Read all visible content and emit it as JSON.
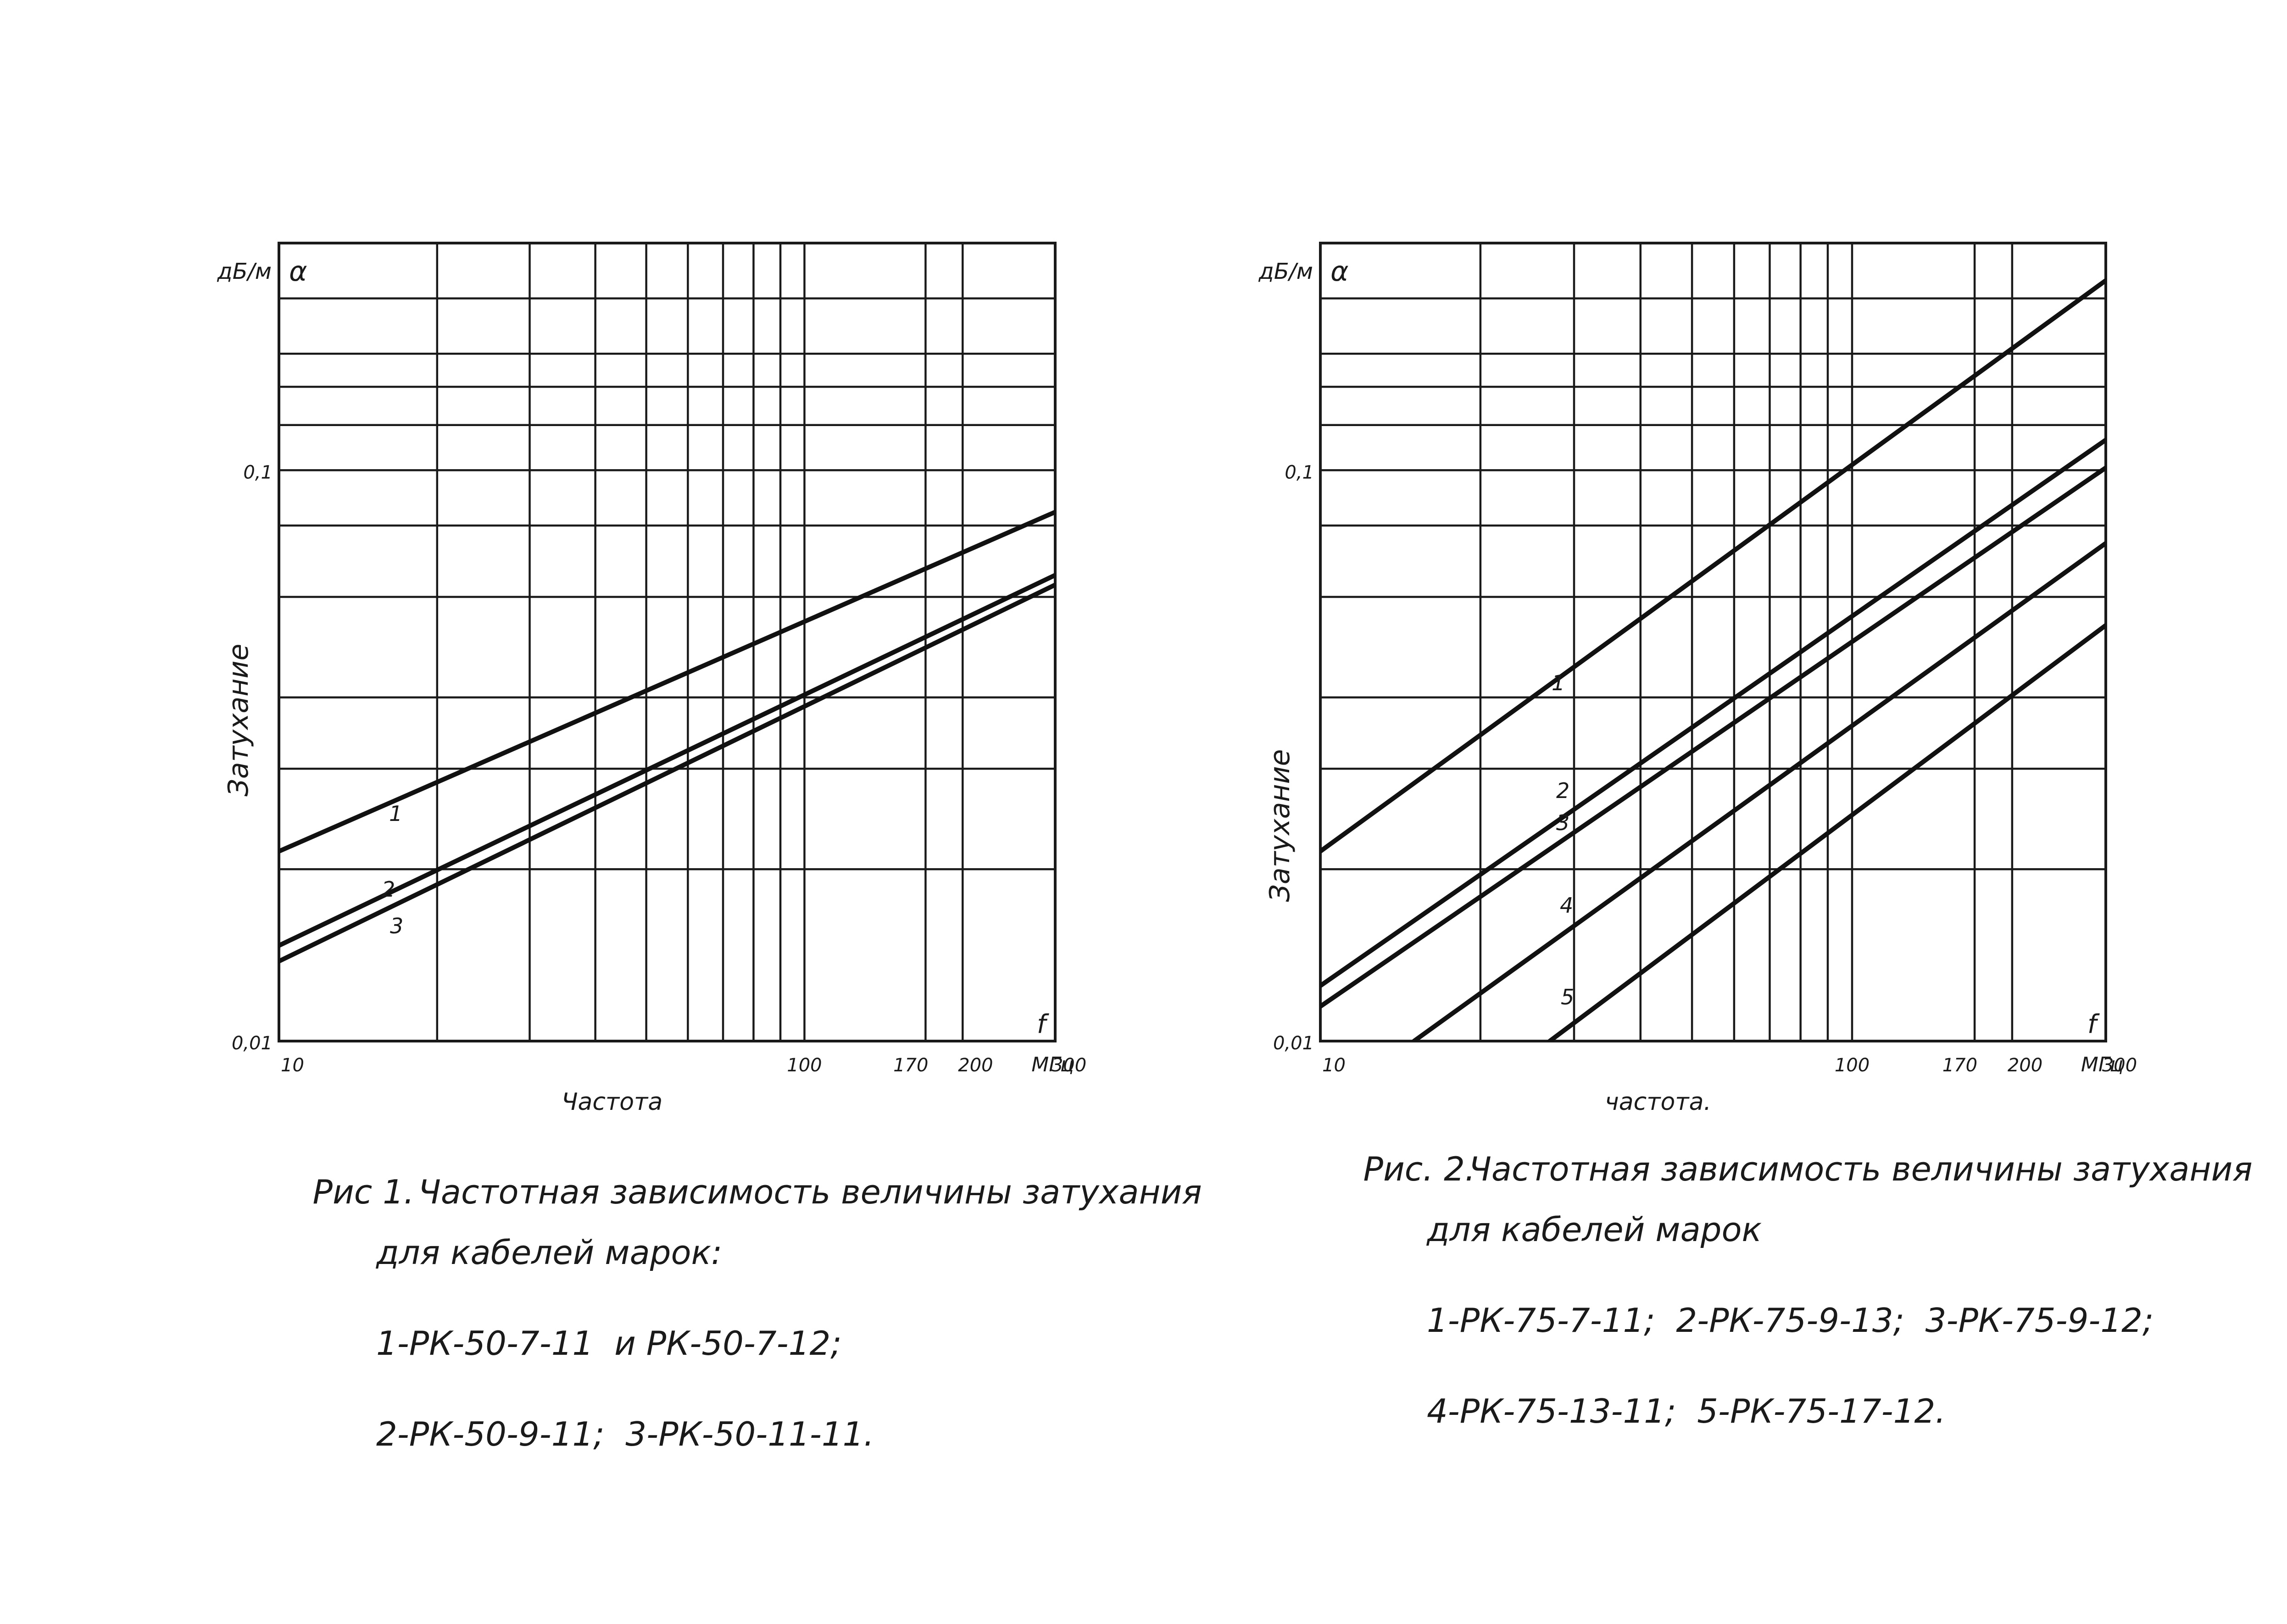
{
  "charts": [
    {
      "id": "fig1",
      "caption": {
        "number": "Рис 1.",
        "line1": "Частотная зависимость величины затухания",
        "line2": "для кабелей марок:",
        "line3": "1-РК-50-7-11  и РК-50-7-12;",
        "line4": "2-РК-50-9-11;  3-РК-50-11-11."
      },
      "y_unit": "дБ/м",
      "y_symbol": "α",
      "y_axis_label": "Затухание",
      "x_axis_label": "Частота",
      "x_symbol": "f",
      "x_unit": "МГц"
    },
    {
      "id": "fig2",
      "caption": {
        "number": "Рис. 2.",
        "line1": "Частотная зависимость величины затухания",
        "line2": "для кабелей марок",
        "line3": "1-РК-75-7-11;  2-РК-75-9-13;  3-РК-75-9-12;",
        "line4": "4-РК-75-13-11;  5-РК-75-17-12."
      },
      "y_unit": "дБ/м",
      "y_symbol": "α",
      "y_axis_label": "Затухание",
      "x_axis_label": "частота.",
      "x_symbol": "f",
      "x_unit": "МГц"
    }
  ],
  "chart_data": [
    {
      "type": "line",
      "x_scale": "log",
      "y_scale": "log",
      "xlim": [
        10,
        300
      ],
      "ylim": [
        0.01,
        0.25
      ],
      "x_ticks": [
        "10",
        "100",
        "170",
        "200",
        "300"
      ],
      "y_ticks": [
        "0,01",
        "0,1"
      ],
      "grid": true,
      "series": [
        {
          "name": "1",
          "x": [
            10,
            300
          ],
          "y": [
            0.0215,
            0.0845
          ]
        },
        {
          "name": "2",
          "x": [
            10,
            300
          ],
          "y": [
            0.0147,
            0.0655
          ]
        },
        {
          "name": "3",
          "x": [
            10,
            300
          ],
          "y": [
            0.0138,
            0.063
          ]
        }
      ]
    },
    {
      "type": "line",
      "x_scale": "log",
      "y_scale": "log",
      "xlim": [
        10,
        300
      ],
      "ylim": [
        0.01,
        0.25
      ],
      "x_ticks": [
        "10",
        "100",
        "170",
        "200",
        "300"
      ],
      "y_ticks": [
        "0,01",
        "0,1"
      ],
      "grid": true,
      "series": [
        {
          "name": "1",
          "x": [
            10,
            300
          ],
          "y": [
            0.0215,
            0.215
          ]
        },
        {
          "name": "2",
          "x": [
            10,
            300
          ],
          "y": [
            0.0125,
            0.113
          ]
        },
        {
          "name": "3",
          "x": [
            10,
            300
          ],
          "y": [
            0.0115,
            0.101
          ]
        },
        {
          "name": "4",
          "x": [
            15,
            300
          ],
          "y": [
            0.01,
            0.0745
          ]
        },
        {
          "name": "5",
          "x": [
            27,
            300
          ],
          "y": [
            0.01,
            0.0535
          ]
        }
      ]
    }
  ]
}
